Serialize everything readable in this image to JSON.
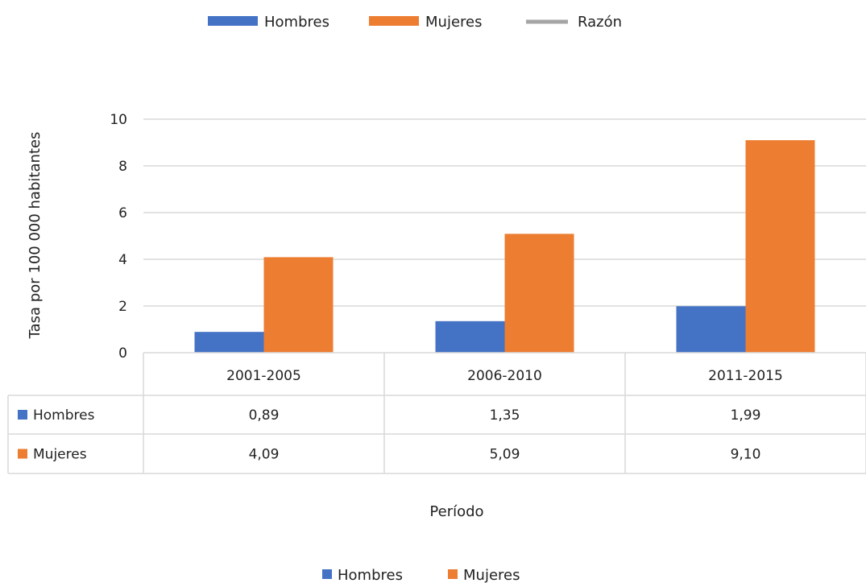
{
  "legend_top": [
    {
      "label": "Hombres",
      "marker": "bar",
      "color": "#4472C4"
    },
    {
      "label": "Mujeres",
      "marker": "bar",
      "color": "#ED7D31"
    },
    {
      "label": "Razón",
      "marker": "line",
      "color": "#A5A5A5"
    }
  ],
  "legend_bottom": [
    {
      "label": "Hombres",
      "color": "#4472C4"
    },
    {
      "label": "Mujeres",
      "color": "#ED7D31"
    }
  ],
  "chart_data": {
    "type": "bar",
    "categories": [
      "2001-2005",
      "2006-2010",
      "2011-2015"
    ],
    "series": [
      {
        "name": "Hombres",
        "values": [
          0.89,
          1.35,
          1.99
        ],
        "labels": [
          "0,89",
          "1,35",
          "1,99"
        ],
        "color": "#4472C4"
      },
      {
        "name": "Mujeres",
        "values": [
          4.09,
          5.09,
          9.1
        ],
        "labels": [
          "4,09",
          "5,09",
          "9,10"
        ],
        "color": "#ED7D31"
      }
    ],
    "ylim": [
      0,
      10
    ],
    "yticks": [
      0,
      2,
      4,
      6,
      8,
      10
    ],
    "ylabel": "Tasa por 100 000 habitantes",
    "xlabel": "Período",
    "grid": true,
    "data_table": true
  }
}
